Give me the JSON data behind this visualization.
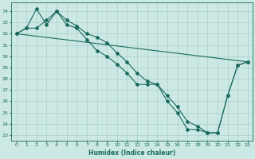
{
  "xlabel": "Humidex (Indice chaleur)",
  "ylabel": "",
  "xlim": [
    -0.5,
    23.5
  ],
  "ylim": [
    22.5,
    34.8
  ],
  "yticks": [
    23,
    24,
    25,
    26,
    27,
    28,
    29,
    30,
    31,
    32,
    33,
    34
  ],
  "xticks": [
    0,
    1,
    2,
    3,
    4,
    5,
    6,
    7,
    8,
    9,
    10,
    11,
    12,
    13,
    14,
    15,
    16,
    17,
    18,
    19,
    20,
    21,
    22,
    23
  ],
  "background_color": "#cce8e4",
  "grid_color": "#aacfcc",
  "line_color": "#1a6b5a",
  "line1_x": [
    0,
    1,
    2,
    3,
    4,
    5,
    6,
    7,
    8,
    9,
    10,
    11,
    12,
    13,
    14,
    15,
    16,
    17,
    18,
    19,
    20,
    21,
    22,
    23
  ],
  "line1_y": [
    32.0,
    32.5,
    34.2,
    32.8,
    34.0,
    32.8,
    32.5,
    31.5,
    30.5,
    30.0,
    29.3,
    28.5,
    27.5,
    27.5,
    27.5,
    26.0,
    25.0,
    23.5,
    23.5,
    23.2,
    23.2,
    26.5,
    29.2,
    29.5
  ],
  "line2_x": [
    0,
    1,
    2,
    3,
    4,
    5,
    6,
    7,
    8,
    9,
    10,
    11,
    12,
    13,
    14,
    15,
    16,
    17,
    18,
    19,
    20,
    21,
    22,
    23
  ],
  "line2_y": [
    32.0,
    32.5,
    32.5,
    33.2,
    34.0,
    33.2,
    32.7,
    32.0,
    31.7,
    31.2,
    30.3,
    29.5,
    28.5,
    27.8,
    27.5,
    26.5,
    25.5,
    24.2,
    23.8,
    23.2,
    23.2,
    26.5,
    29.2,
    29.5
  ],
  "line3_x": [
    0,
    23
  ],
  "line3_y": [
    32.0,
    29.5
  ],
  "marker": "D",
  "markersize": 2.0,
  "linewidth": 0.8,
  "label_fontsize": 5.5,
  "tick_fontsize": 4.5
}
